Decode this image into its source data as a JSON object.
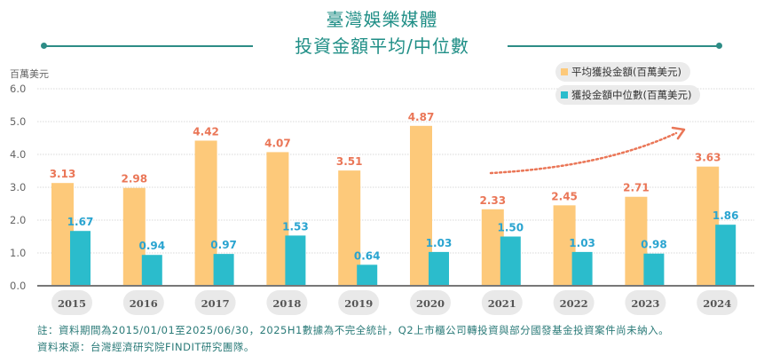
{
  "header": {
    "title_line1": "臺灣娛樂媒體",
    "title_line2": "投資金額平均/中位數"
  },
  "colors": {
    "average": "#fdc97a",
    "median": "#2bbccc",
    "average_label": "#ea7657",
    "median_label": "#2aa4d0",
    "title": "#1f8e86",
    "trend_arrow": "#ea7657"
  },
  "chart_data": {
    "type": "bar",
    "title": "臺灣娛樂媒體 投資金額平均/中位數",
    "xlabel": "",
    "ylabel": "百萬美元",
    "ylim": [
      0,
      6
    ],
    "yticks": [
      "0.0",
      "1.0",
      "2.0",
      "3.0",
      "4.0",
      "5.0",
      "6.0"
    ],
    "grid": true,
    "legend_position": "top-right",
    "categories": [
      "2015",
      "2016",
      "2017",
      "2018",
      "2019",
      "2020",
      "2021",
      "2022",
      "2023",
      "2024"
    ],
    "series": [
      {
        "name": "平均獲投金額(百萬美元)",
        "values": [
          3.13,
          2.98,
          4.42,
          4.07,
          3.51,
          4.87,
          2.33,
          2.45,
          2.71,
          3.63
        ],
        "labels": [
          "3.13",
          "2.98",
          "4.42",
          "4.07",
          "3.51",
          "4.87",
          "2.33",
          "2.45",
          "2.71",
          "3.63"
        ]
      },
      {
        "name": "獲投金額中位數(百萬美元)",
        "values": [
          1.67,
          0.94,
          0.97,
          1.53,
          0.64,
          1.03,
          1.5,
          1.03,
          0.98,
          1.86
        ],
        "labels": [
          "1.67",
          "0.94",
          "0.97",
          "1.53",
          "0.64",
          "1.03",
          "1.50",
          "1.03",
          "0.98",
          "1.86"
        ]
      }
    ],
    "annotations": [
      {
        "type": "dotted-arrow",
        "description": "upward trend arrow spanning 2021 to 2024"
      }
    ]
  },
  "footer": {
    "note": "註：資料期間為2015/01/01至2025/06/30，2025H1數據為不完全統計，Q2上市櫃公司轉投資與部分國發基金投資案件尚未納入。",
    "source": "資料來源：台灣經濟研究院FINDIT研究團隊。"
  }
}
